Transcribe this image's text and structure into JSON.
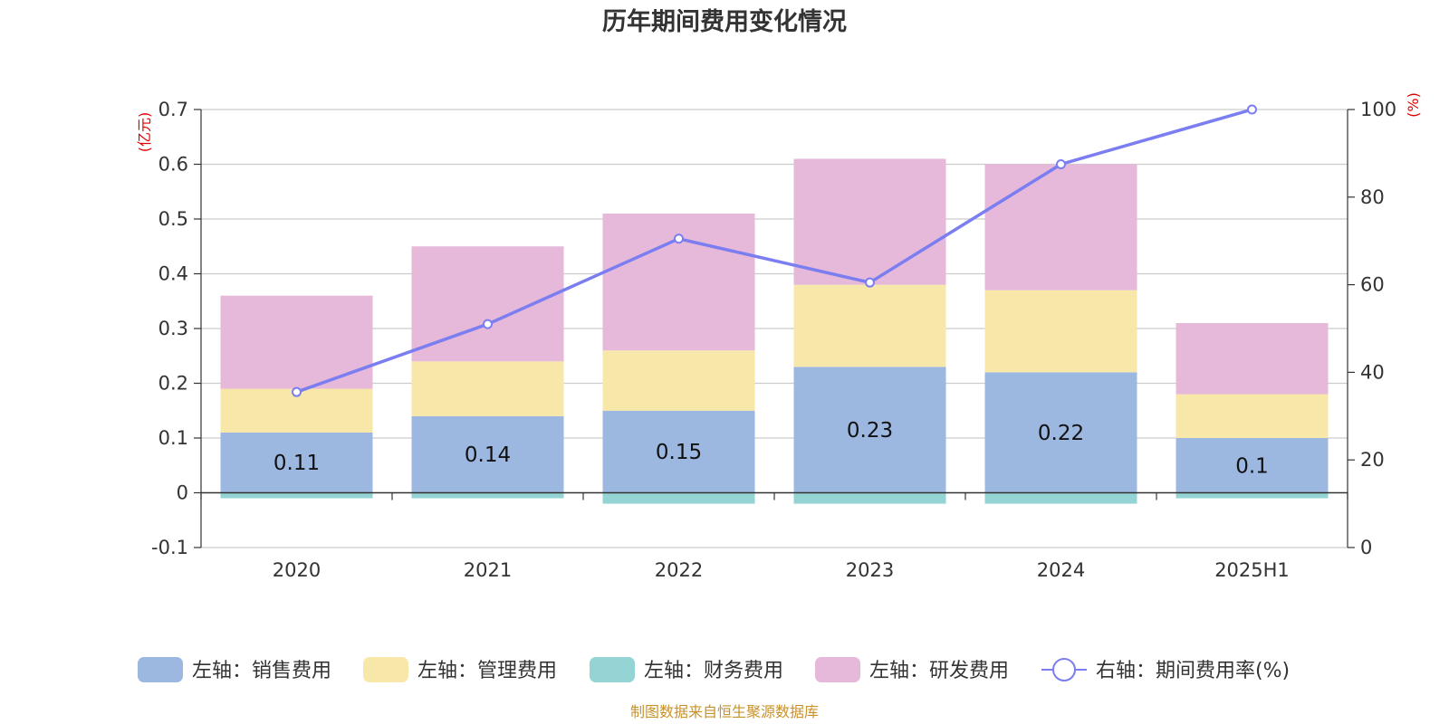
{
  "colors": {
    "sales": "#9cb7e0",
    "admin": "#f7e7a8",
    "finance": "#95d4d4",
    "rd": "#e6b8da",
    "rate_line": "#7b7ef0",
    "unit_text": "#e00000",
    "source_text": "#c8922a"
  },
  "chart_data": {
    "type": "bar",
    "title": "历年期间费用变化情况",
    "categories": [
      "2020",
      "2021",
      "2022",
      "2023",
      "2024",
      "2025H1"
    ],
    "stacked": true,
    "left_axis": {
      "unit": "(亿元)",
      "ylim": [
        -0.1,
        0.7
      ],
      "ticks": [
        "0.7",
        "0.6",
        "0.5",
        "0.4",
        "0.3",
        "0.2",
        "0.1",
        "0",
        "-0.1"
      ],
      "tick_values": [
        0.7,
        0.6,
        0.5,
        0.4,
        0.3,
        0.2,
        0.1,
        0,
        -0.1
      ]
    },
    "right_axis": {
      "unit": "(%)",
      "ylim": [
        0,
        100
      ],
      "ticks": [
        "100",
        "80",
        "60",
        "40",
        "20",
        "0"
      ],
      "tick_values": [
        100,
        80,
        60,
        40,
        20,
        0
      ]
    },
    "grid": true,
    "legend_position": "bottom",
    "series": [
      {
        "key": "sales",
        "name": "左轴：销售费用",
        "axis": "left",
        "type": "bar",
        "values": [
          0.11,
          0.14,
          0.15,
          0.23,
          0.22,
          0.1
        ],
        "labels": [
          "0.11",
          "0.14",
          "0.15",
          "0.23",
          "0.22",
          "0.1"
        ]
      },
      {
        "key": "admin",
        "name": "左轴：管理费用",
        "axis": "left",
        "type": "bar",
        "values": [
          0.08,
          0.1,
          0.11,
          0.15,
          0.15,
          0.08
        ]
      },
      {
        "key": "finance",
        "name": "左轴：财务费用",
        "axis": "left",
        "type": "bar",
        "values": [
          -0.01,
          -0.01,
          -0.02,
          -0.02,
          -0.02,
          -0.01
        ]
      },
      {
        "key": "rd",
        "name": "左轴：研发费用",
        "axis": "left",
        "type": "bar",
        "values": [
          0.17,
          0.21,
          0.25,
          0.23,
          0.23,
          0.13
        ]
      },
      {
        "key": "rate_line",
        "name": "右轴：期间费用率(%)",
        "axis": "right",
        "type": "line",
        "values": [
          35.5,
          51,
          70.5,
          60.5,
          87.5,
          100
        ]
      }
    ],
    "source": "制图数据来自恒生聚源数据库"
  }
}
